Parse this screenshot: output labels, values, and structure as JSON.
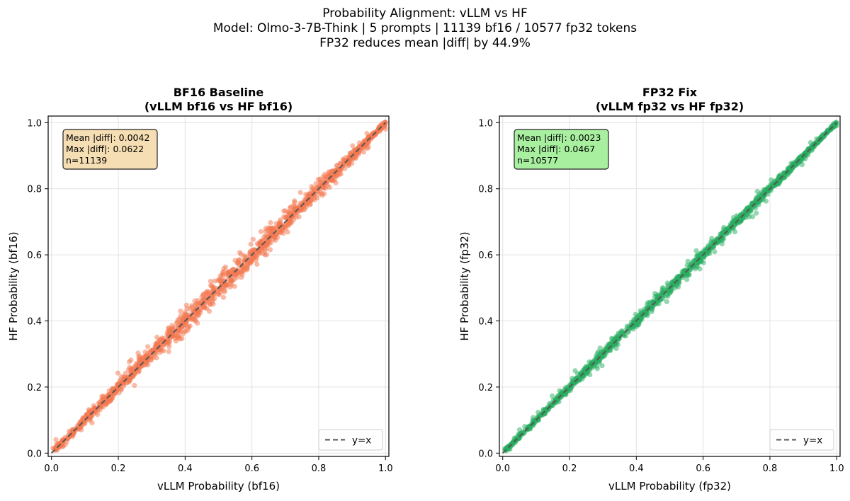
{
  "figure": {
    "suptitle_lines": [
      "Probability Alignment: vLLM vs HF",
      "Model: Olmo-3-7B-Think | 5 prompts | 11139 bf16 / 10577 fp32 tokens",
      "FP32 reduces mean |diff| by 44.9%"
    ]
  },
  "chart_data": [
    {
      "type": "scatter",
      "title_lines": [
        "BF16 Baseline",
        "(vLLM bf16 vs HF bf16)"
      ],
      "xlabel": "vLLM Probability (bf16)",
      "ylabel": "HF Probability (bf16)",
      "xlim": [
        -0.01,
        1.01
      ],
      "ylim": [
        -0.01,
        1.02
      ],
      "xticks": [
        "0.0",
        "0.2",
        "0.4",
        "0.6",
        "0.8",
        "1.0"
      ],
      "yticks": [
        "0.0",
        "0.2",
        "0.4",
        "0.6",
        "0.8",
        "1.0"
      ],
      "grid": true,
      "point_color": "#f4774f",
      "point_alpha": 0.5,
      "n_points": 11139,
      "mean_abs_diff": 0.0042,
      "max_abs_diff": 0.0622,
      "stats_lines": [
        "Mean |diff|: 0.0042",
        "Max |diff|: 0.0622",
        "n=11139"
      ],
      "stats_box_color": "#f5deb3",
      "stats_box_position": "top-left",
      "reference_line": {
        "label": "y=x",
        "from": [
          0,
          0
        ],
        "to": [
          1,
          1
        ],
        "color": "#555555",
        "style": "dashed"
      },
      "legend_position": "bottom-right",
      "samples": [
        {
          "x": 0.05,
          "y": 0.054
        },
        {
          "x": 0.12,
          "y": 0.113
        },
        {
          "x": 0.18,
          "y": 0.189
        },
        {
          "x": 0.25,
          "y": 0.242
        },
        {
          "x": 0.31,
          "y": 0.322
        },
        {
          "x": 0.38,
          "y": 0.371
        },
        {
          "x": 0.45,
          "y": 0.46
        },
        {
          "x": 0.52,
          "y": 0.509
        },
        {
          "x": 0.58,
          "y": 0.594
        },
        {
          "x": 0.64,
          "y": 0.628
        },
        {
          "x": 0.7,
          "y": 0.713
        },
        {
          "x": 0.77,
          "y": 0.76
        },
        {
          "x": 0.83,
          "y": 0.846
        },
        {
          "x": 0.89,
          "y": 0.878
        },
        {
          "x": 0.95,
          "y": 0.957
        }
      ]
    },
    {
      "type": "scatter",
      "title_lines": [
        "FP32 Fix",
        "(vLLM fp32 vs HF fp32)"
      ],
      "xlabel": "vLLM Probability (fp32)",
      "ylabel": "HF Probability (fp32)",
      "xlim": [
        -0.01,
        1.01
      ],
      "ylim": [
        -0.01,
        1.02
      ],
      "xticks": [
        "0.0",
        "0.2",
        "0.4",
        "0.6",
        "0.8",
        "1.0"
      ],
      "yticks": [
        "0.0",
        "0.2",
        "0.4",
        "0.6",
        "0.8",
        "1.0"
      ],
      "grid": true,
      "point_color": "#27ae60",
      "point_alpha": 0.5,
      "n_points": 10577,
      "mean_abs_diff": 0.0023,
      "max_abs_diff": 0.0467,
      "stats_lines": [
        "Mean |diff|: 0.0023",
        "Max |diff|: 0.0467",
        "n=10577"
      ],
      "stats_box_color": "#a8f0a0",
      "stats_box_position": "top-left",
      "reference_line": {
        "label": "y=x",
        "from": [
          0,
          0
        ],
        "to": [
          1,
          1
        ],
        "color": "#555555",
        "style": "dashed"
      },
      "legend_position": "bottom-right",
      "samples": [
        {
          "x": 0.05,
          "y": 0.052
        },
        {
          "x": 0.12,
          "y": 0.117
        },
        {
          "x": 0.18,
          "y": 0.184
        },
        {
          "x": 0.25,
          "y": 0.246
        },
        {
          "x": 0.31,
          "y": 0.315
        },
        {
          "x": 0.38,
          "y": 0.376
        },
        {
          "x": 0.45,
          "y": 0.455
        },
        {
          "x": 0.52,
          "y": 0.515
        },
        {
          "x": 0.58,
          "y": 0.586
        },
        {
          "x": 0.64,
          "y": 0.636
        },
        {
          "x": 0.7,
          "y": 0.706
        },
        {
          "x": 0.77,
          "y": 0.766
        },
        {
          "x": 0.83,
          "y": 0.836
        },
        {
          "x": 0.89,
          "y": 0.885
        },
        {
          "x": 0.95,
          "y": 0.953
        }
      ]
    }
  ]
}
